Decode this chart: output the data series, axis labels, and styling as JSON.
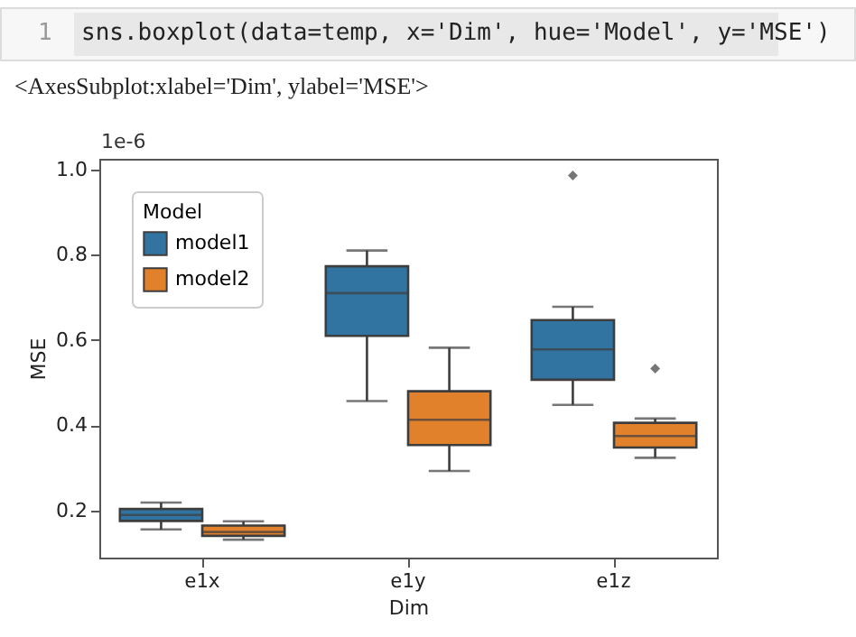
{
  "chart_data": {
    "type": "box",
    "xlabel": "Dim",
    "ylabel": "MSE",
    "legend_title": "Model",
    "legend": "top left",
    "grid": false,
    "marker": "diamond",
    "categories": [
      "e1x",
      "e1y",
      "e1z"
    ],
    "ylim": [
      0.09,
      1.025
    ],
    "yticks": [
      0.2,
      0.4,
      0.6,
      0.8,
      {
        "value": 1.0,
        "label": "1.0"
      }
    ],
    "annotations": [
      "1",
      "sns.boxplot(data=temp, x='Dim', hue='Model', y='MSE')",
      "<AxesSubplot:xlabel='Dim', ylabel='MSE'>",
      "1e-6"
    ],
    "series": [
      {
        "name": "model1",
        "color": "#3274a1",
        "boxes": [
          {
            "low": 0.156,
            "q1": 0.176,
            "median": 0.19,
            "q3": 0.204,
            "high": 0.219
          },
          {
            "low": 0.457,
            "q1": 0.61,
            "median": 0.71,
            "q3": 0.773,
            "high": 0.81
          },
          {
            "low": 0.448,
            "q1": 0.507,
            "median": 0.578,
            "q3": 0.647,
            "high": 0.678,
            "outliers": [
              0.986
            ]
          }
        ]
      },
      {
        "name": "model2",
        "color": "#e1812c",
        "boxes": [
          {
            "low": 0.132,
            "q1": 0.141,
            "median": 0.15,
            "q3": 0.165,
            "high": 0.175
          },
          {
            "low": 0.293,
            "q1": 0.354,
            "median": 0.413,
            "q3": 0.48,
            "high": 0.582
          },
          {
            "low": 0.324,
            "q1": 0.348,
            "median": 0.375,
            "q3": 0.406,
            "high": 0.416,
            "outliers": [
              0.533
            ]
          }
        ]
      }
    ]
  }
}
